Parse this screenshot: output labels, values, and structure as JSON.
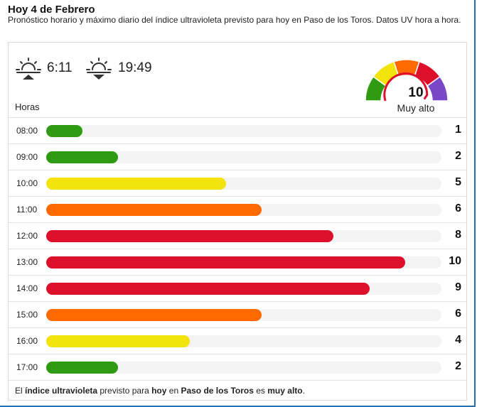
{
  "header": {
    "title": "Hoy 4 de Febrero",
    "subtitle": "Pronóstico horario y máximo diario del índice ultravioleta previsto para hoy en Paso de los Toros. Datos UV hora a hora."
  },
  "sun": {
    "sunrise": "6:11",
    "sunset": "19:49",
    "sunrise_icon": "sunrise-icon",
    "sunset_icon": "sunset-icon"
  },
  "gauge": {
    "value": "10",
    "label": "Muy alto",
    "scale_max": 11,
    "segment_colors": [
      "#2e9b12",
      "#f2e30b",
      "#ff6a00",
      "#dd0f2a",
      "#7b47c9"
    ]
  },
  "table": {
    "hours_label": "Horas",
    "max_uv": 11,
    "rows": [
      {
        "hour": "08:00",
        "value": "1",
        "color": "#2e9b12"
      },
      {
        "hour": "09:00",
        "value": "2",
        "color": "#2e9b12"
      },
      {
        "hour": "10:00",
        "value": "5",
        "color": "#f2e30b"
      },
      {
        "hour": "11:00",
        "value": "6",
        "color": "#ff6a00"
      },
      {
        "hour": "12:00",
        "value": "8",
        "color": "#dd0f2a"
      },
      {
        "hour": "13:00",
        "value": "10",
        "color": "#dd0f2a"
      },
      {
        "hour": "14:00",
        "value": "9",
        "color": "#dd0f2a"
      },
      {
        "hour": "15:00",
        "value": "6",
        "color": "#ff6a00"
      },
      {
        "hour": "16:00",
        "value": "4",
        "color": "#f2e30b"
      },
      {
        "hour": "17:00",
        "value": "2",
        "color": "#2e9b12"
      }
    ]
  },
  "footer": {
    "p1": "El ",
    "b1": "índice ultravioleta",
    "p2": " previsto para ",
    "b2": "hoy",
    "p3": " en ",
    "b3": "Paso de los Toros",
    "p4": " es ",
    "b4": "muy alto",
    "p5": "."
  }
}
